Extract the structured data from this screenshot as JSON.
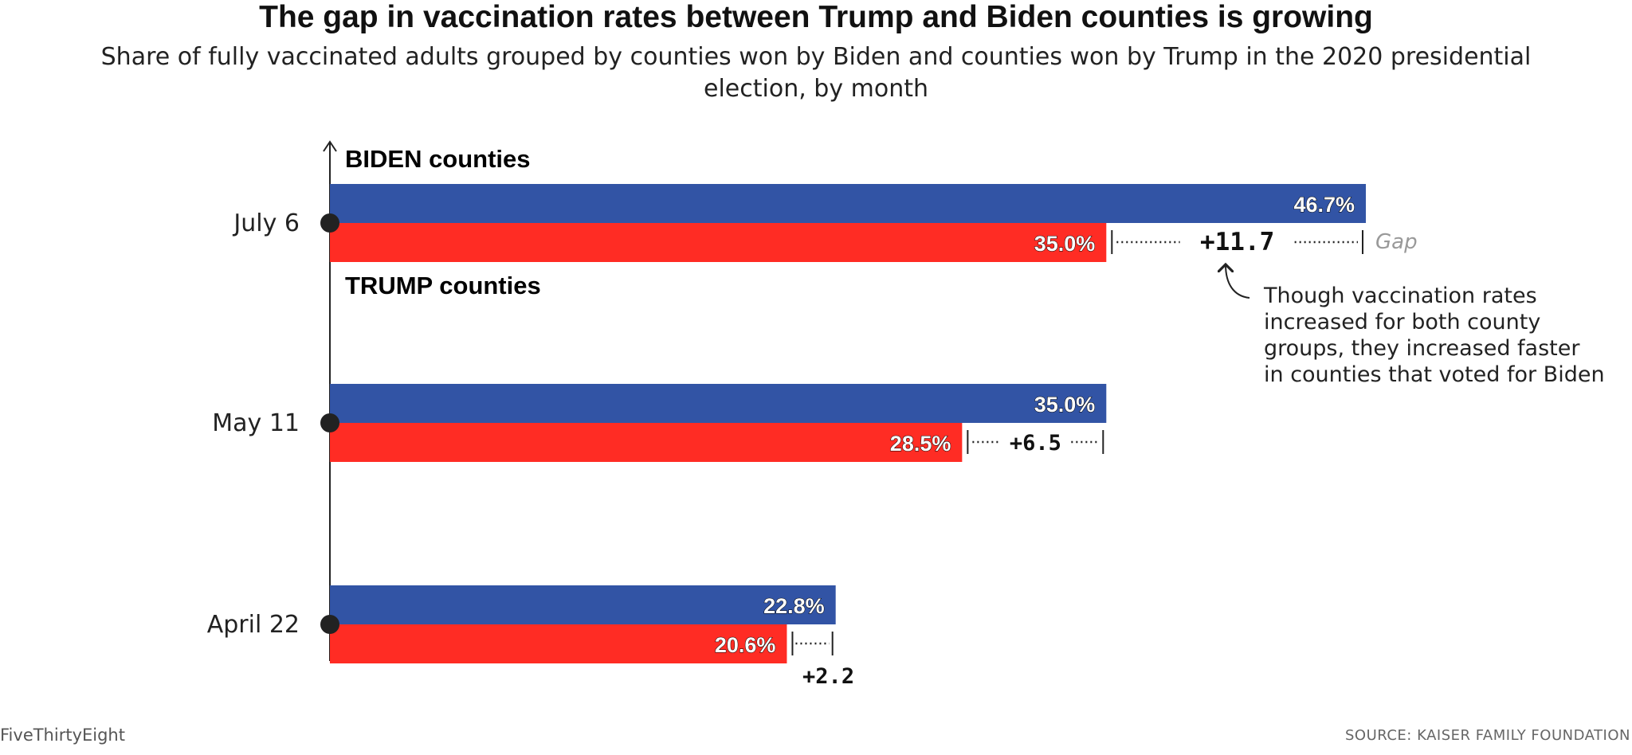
{
  "header": {
    "title": "The gap in vaccination rates between Trump and Biden counties is growing",
    "subtitle": "Share of fully vaccinated adults grouped by counties won by Biden and counties won by Trump in the 2020 presidential election, by month"
  },
  "footer": {
    "brand": "FiveThirtyEight",
    "source": "SOURCE: KAISER FAMILY FOUNDATION"
  },
  "colors": {
    "biden": "#3254a5",
    "trump": "#ff2c24"
  },
  "annotation": {
    "gap_word": "Gap",
    "lines": [
      "Though vaccination rates",
      "increased for both county",
      "groups, they increased faster",
      "in counties that voted for Biden"
    ]
  },
  "chart_data": {
    "type": "bar",
    "orientation": "horizontal",
    "categories": [
      "July 6",
      "May 11",
      "April 22"
    ],
    "series": [
      {
        "name": "BIDEN counties",
        "values": [
          46.7,
          35.0,
          22.8
        ],
        "labels": [
          "46.7%",
          "35.0%",
          "22.8%"
        ]
      },
      {
        "name": "TRUMP counties",
        "values": [
          35.0,
          28.5,
          20.6
        ],
        "labels": [
          "35.0%",
          "28.5%",
          "20.6%"
        ]
      }
    ],
    "gaps": [
      "+11.7",
      "+6.5",
      "+2.2"
    ],
    "xlim": [
      0,
      46.7
    ],
    "grid": false
  }
}
